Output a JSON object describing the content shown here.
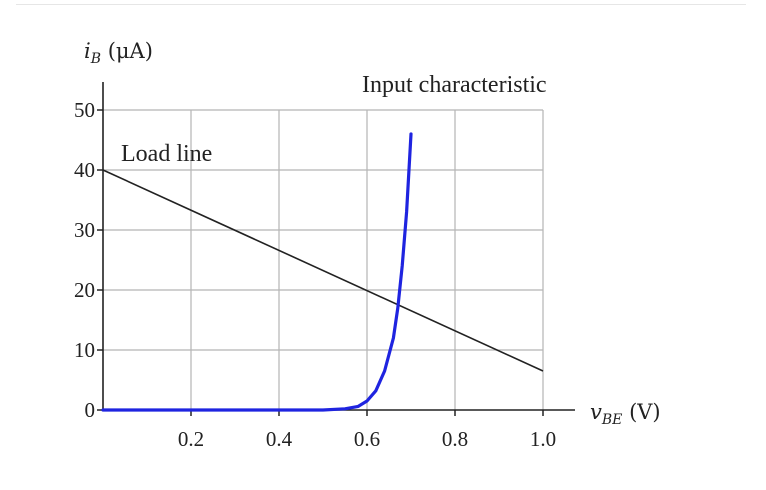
{
  "chart_data": {
    "type": "line",
    "xlim": [
      0,
      1.0
    ],
    "ylim": [
      0,
      50
    ],
    "x_ticks": [
      "0.2",
      "0.4",
      "0.6",
      "0.8",
      "1.0"
    ],
    "y_ticks": [
      "0",
      "10",
      "20",
      "30",
      "40",
      "50"
    ],
    "grid": true,
    "xlabel": {
      "var": "v",
      "sub": "BE",
      "unit": "(V)"
    },
    "ylabel": {
      "var": "i",
      "sub": "B",
      "unit": "(μA)"
    },
    "series": [
      {
        "name": "Load line",
        "color": "#222222",
        "x": [
          0.0,
          1.0
        ],
        "y": [
          40,
          6.5
        ]
      },
      {
        "name": "Input characteristic",
        "color": "#1f24e0",
        "x": [
          0.0,
          0.5,
          0.55,
          0.58,
          0.6,
          0.62,
          0.64,
          0.66,
          0.67,
          0.68,
          0.69,
          0.7
        ],
        "y": [
          0,
          0,
          0.2,
          0.6,
          1.5,
          3.2,
          6.5,
          12,
          17,
          24,
          33,
          46
        ]
      }
    ]
  }
}
